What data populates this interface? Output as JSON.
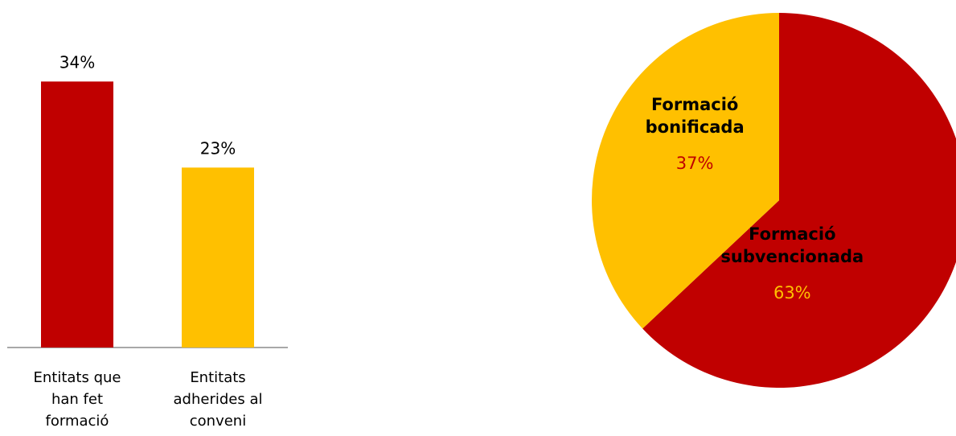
{
  "chart_data": [
    {
      "type": "bar",
      "categories": [
        [
          "Entitats que",
          "han fet",
          "formació"
        ],
        [
          "Entitats",
          "adherides al",
          "conveni"
        ]
      ],
      "values": [
        34,
        23
      ],
      "labels": [
        "34%",
        "23%"
      ],
      "colors": [
        "#C00000",
        "#FFC000"
      ],
      "unit": "%",
      "ylim": [
        0,
        40
      ],
      "grid": false,
      "legend": "none"
    },
    {
      "type": "pie",
      "slices": [
        {
          "name": [
            "Formació",
            "subvencionada"
          ],
          "value": 63,
          "label": "63%",
          "color": "#C00000",
          "label_color": "#FFC000"
        },
        {
          "name": [
            "Formació",
            "bonificada"
          ],
          "value": 37,
          "label": "37%",
          "color": "#FFC000",
          "label_color": "#C00000"
        }
      ],
      "start_angle_deg": 0,
      "direction": "clockwise",
      "legend": "none"
    }
  ]
}
